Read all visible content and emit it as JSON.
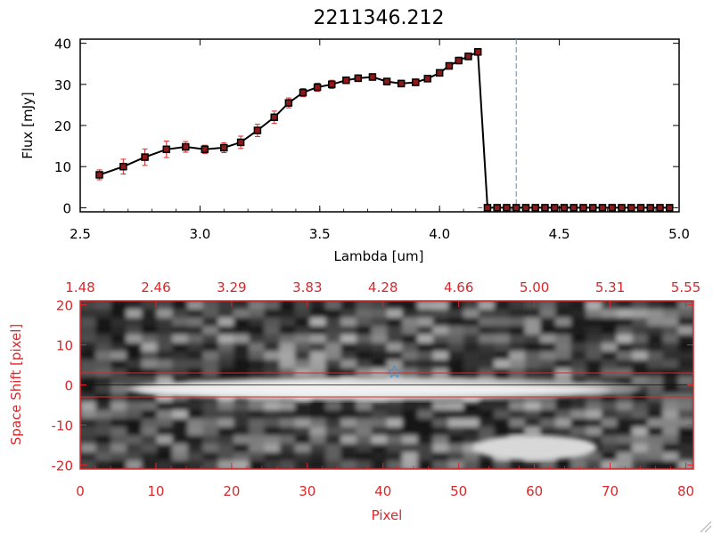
{
  "chart_data": [
    {
      "type": "line",
      "title": "2211346.212",
      "xlabel": "Lambda [um]",
      "ylabel": "Flux [mJy]",
      "xlim": [
        2.5,
        5.0
      ],
      "ylim": [
        -1,
        41
      ],
      "x_ticks": [
        "2.5",
        "3.0",
        "3.5",
        "4.0",
        "4.5",
        "5.0"
      ],
      "y_ticks": [
        "0",
        "10",
        "20",
        "30",
        "40"
      ],
      "x_tick_values": [
        2.5,
        3.0,
        3.5,
        4.0,
        4.5,
        5.0
      ],
      "y_tick_values": [
        0,
        10,
        20,
        30,
        40
      ],
      "vline_x": 4.32,
      "series": [
        {
          "x": [
            2.58,
            2.68,
            2.77,
            2.86,
            2.94,
            3.02,
            3.1,
            3.17,
            3.24,
            3.31,
            3.37,
            3.43,
            3.49,
            3.55,
            3.61,
            3.66,
            3.72,
            3.78,
            3.84,
            3.9,
            3.95,
            4.0,
            4.04,
            4.08,
            4.12,
            4.16,
            4.2,
            4.24,
            4.28,
            4.32,
            4.36,
            4.4,
            4.44,
            4.48,
            4.52,
            4.56,
            4.6,
            4.64,
            4.68,
            4.72,
            4.76,
            4.8,
            4.84,
            4.88,
            4.92,
            4.96
          ],
          "y": [
            8.0,
            10.0,
            12.3,
            14.2,
            14.8,
            14.2,
            14.6,
            15.9,
            18.8,
            22.0,
            25.5,
            28.0,
            29.3,
            30.0,
            31.0,
            31.5,
            31.8,
            30.7,
            30.2,
            30.5,
            31.4,
            32.8,
            34.5,
            35.8,
            36.8,
            37.9,
            0,
            0,
            0,
            0,
            0,
            0,
            0,
            0,
            0,
            0,
            0,
            0,
            0,
            0,
            0,
            0,
            0,
            0,
            0,
            0
          ],
          "err": [
            1.2,
            1.8,
            2.0,
            2.0,
            1.3,
            1.0,
            1.2,
            1.5,
            1.5,
            1.5,
            1.2,
            1.0,
            1.0,
            1.0,
            0.8,
            0.8,
            0.8,
            0.8,
            0.8,
            0.8,
            0.8,
            0.8,
            0.8,
            0.8,
            0.8,
            0.8,
            0,
            0,
            0,
            0,
            0,
            0,
            0,
            0,
            0,
            0,
            0,
            0,
            0,
            0,
            0,
            0,
            0,
            0,
            0,
            0
          ]
        }
      ]
    },
    {
      "type": "heatmap",
      "xlabel": "Pixel",
      "ylabel": "Space Shift [pixel]",
      "xlim": [
        0,
        81
      ],
      "ylim": [
        -21,
        21
      ],
      "x_ticks": [
        "0",
        "10",
        "20",
        "30",
        "40",
        "50",
        "60",
        "70",
        "80"
      ],
      "y_ticks": [
        "-20",
        "-10",
        "0",
        "10",
        "20"
      ],
      "x_tick_values": [
        0,
        10,
        20,
        30,
        40,
        50,
        60,
        70,
        80
      ],
      "y_tick_values": [
        -20,
        -10,
        0,
        10,
        20
      ],
      "top_x_ticks": [
        "1.48",
        "2.46",
        "3.29",
        "3.83",
        "4.28",
        "4.66",
        "5.00",
        "5.31",
        "5.55"
      ],
      "extraction_lines_y": [
        3,
        -3
      ],
      "center_line_y": 0,
      "star_marker": {
        "x": 41.5,
        "y": 3.2
      }
    }
  ]
}
